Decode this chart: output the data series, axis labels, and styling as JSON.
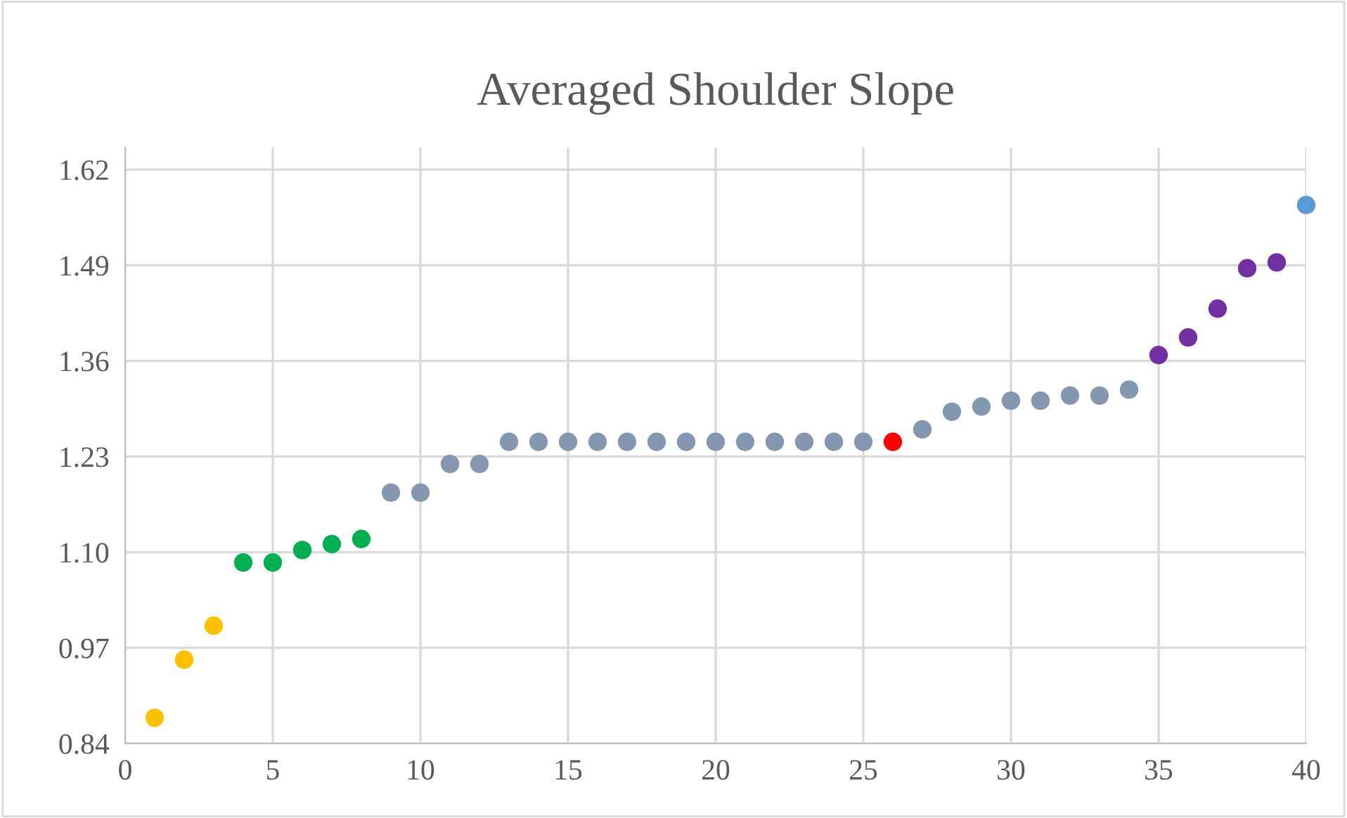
{
  "chart_data": {
    "type": "scatter",
    "title": "Averaged Shoulder Slope",
    "series": [
      {
        "color": "#ffc000",
        "x": [
          1,
          2,
          3
        ],
        "values": [
          0.875,
          0.954,
          1.0
        ]
      },
      {
        "color": "#00b050",
        "x": [
          4,
          5,
          6,
          7,
          8
        ],
        "values": [
          1.086,
          1.086,
          1.103,
          1.111,
          1.118
        ]
      },
      {
        "color": "#8497b0",
        "x": [
          9,
          10,
          11,
          12,
          13,
          14,
          15,
          16,
          17,
          18,
          19,
          20,
          21,
          22,
          23,
          24,
          25
        ],
        "values": [
          1.181,
          1.181,
          1.22,
          1.22,
          1.25,
          1.25,
          1.25,
          1.25,
          1.25,
          1.25,
          1.25,
          1.25,
          1.25,
          1.25,
          1.25,
          1.25,
          1.25
        ]
      },
      {
        "color": "#ff0000",
        "x": [
          26
        ],
        "values": [
          1.25
        ]
      },
      {
        "color": "#8497b0",
        "x": [
          27,
          28,
          29,
          30,
          31,
          32,
          33,
          34
        ],
        "values": [
          1.267,
          1.291,
          1.298,
          1.306,
          1.306,
          1.313,
          1.313,
          1.321
        ]
      },
      {
        "color": "#7030a0",
        "x": [
          35,
          36,
          37,
          38,
          39
        ],
        "values": [
          1.368,
          1.392,
          1.431,
          1.486,
          1.494
        ]
      },
      {
        "color": "#5b9bd5",
        "x": [
          40
        ],
        "values": [
          1.572
        ]
      }
    ],
    "xlim": [
      0,
      40
    ],
    "xticks": [
      0,
      5,
      10,
      15,
      20,
      25,
      30,
      35,
      40
    ],
    "ylim": [
      0.84,
      1.65
    ],
    "yticks": [
      {
        "value": 0.84,
        "label": "0.84"
      },
      {
        "value": 0.97,
        "label": "0.97"
      },
      {
        "value": 1.1,
        "label": "1.10"
      },
      {
        "value": 1.23,
        "label": "1.23"
      },
      {
        "value": 1.36,
        "label": "1.36"
      },
      {
        "value": 1.49,
        "label": "1.49"
      },
      {
        "value": 1.62,
        "label": "1.62"
      }
    ],
    "grid": true,
    "marker": "circle",
    "legend": false
  }
}
